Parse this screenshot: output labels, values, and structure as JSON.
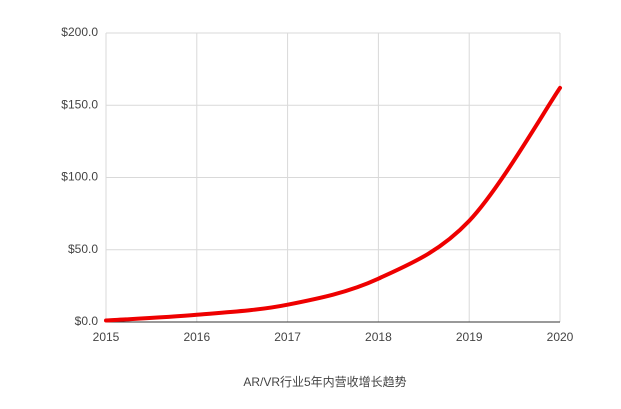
{
  "chart_data": {
    "type": "line",
    "title": "AR/VR行业5年内营收增长趋势",
    "x": [
      2015,
      2016,
      2017,
      2018,
      2019,
      2020
    ],
    "series": [
      {
        "color": "#ee0000",
        "values": [
          1,
          5,
          12,
          30,
          70,
          162
        ]
      }
    ],
    "xlim": [
      2015,
      2020
    ],
    "xticks": [
      2015,
      2016,
      2017,
      2018,
      2019,
      2020
    ],
    "ylim": [
      0,
      200
    ],
    "yticks": [
      {
        "value": 0,
        "label": "$0.0"
      },
      {
        "value": 50,
        "label": "$50.0"
      },
      {
        "value": 100,
        "label": "$100.0"
      },
      {
        "value": 150,
        "label": "$150.0"
      },
      {
        "value": 200,
        "label": "$200.0"
      }
    ],
    "grid": true
  }
}
